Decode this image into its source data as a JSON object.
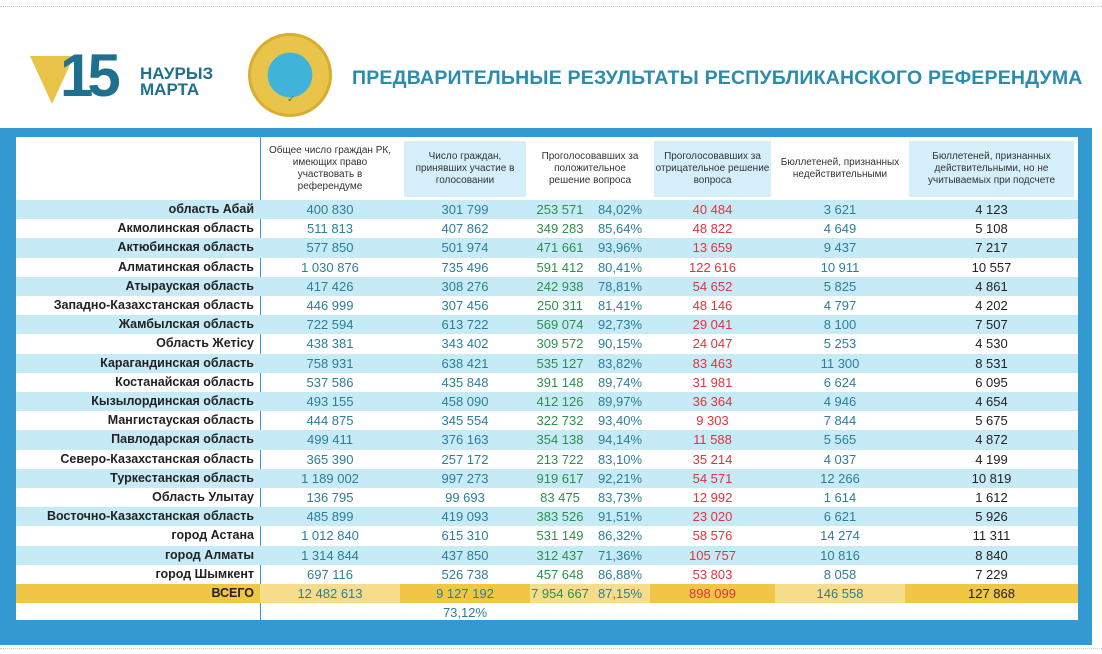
{
  "header": {
    "logo_number": "15",
    "logo_line1": "НАУРЫЗ",
    "logo_line2": "МАРТА",
    "title": "ПРЕДВАРИТЕЛЬНЫЕ РЕЗУЛЬТАТЫ РЕСПУБЛИКАНСКОГО РЕФЕРЕНДУМА"
  },
  "columns": [
    "Общее число граждан РК, имеющих право участвовать в референдуме",
    "Число граждан, принявших участие в голосовании",
    "Проголосовавших за положительное решение вопроса",
    "Проголосовавших за отрицательное решение вопроса",
    "Бюллетеней, признанных недействительными",
    "Бюллетеней, признанных действительными, но не учитываемых при подсчете"
  ],
  "rows": [
    [
      "область Абай",
      "400 830",
      "301 799",
      "253 571",
      "84,02%",
      "40 484",
      "3 621",
      "4 123"
    ],
    [
      "Акмолинская область",
      "511 813",
      "407 862",
      "349 283",
      "85,64%",
      "48 822",
      "4 649",
      "5 108"
    ],
    [
      "Актюбинская область",
      "577 850",
      "501 974",
      "471 661",
      "93,96%",
      "13 659",
      "9 437",
      "7 217"
    ],
    [
      "Алматинская область",
      "1 030 876",
      "735 496",
      "591 412",
      "80,41%",
      "122 616",
      "10 911",
      "10 557"
    ],
    [
      "Атырауская область",
      "417 426",
      "308 276",
      "242 938",
      "78,81%",
      "54 652",
      "5 825",
      "4 861"
    ],
    [
      "Западно-Казахстанская область",
      "446 999",
      "307 456",
      "250 311",
      "81,41%",
      "48 146",
      "4 797",
      "4 202"
    ],
    [
      "Жамбылская область",
      "722 594",
      "613 722",
      "569 074",
      "92,73%",
      "29 041",
      "8 100",
      "7 507"
    ],
    [
      "Область Жетісу",
      "438 381",
      "343 402",
      "309 572",
      "90,15%",
      "24 047",
      "5 253",
      "4 530"
    ],
    [
      "Карагандинская область",
      "758 931",
      "638 421",
      "535 127",
      "83,82%",
      "83 463",
      "11 300",
      "8 531"
    ],
    [
      "Костанайская область",
      "537 586",
      "435 848",
      "391 148",
      "89,74%",
      "31 981",
      "6 624",
      "6 095"
    ],
    [
      "Кызылординская область",
      "493 155",
      "458 090",
      "412 126",
      "89,97%",
      "36 364",
      "4 946",
      "4 654"
    ],
    [
      "Мангистауская область",
      "444 875",
      "345 554",
      "322 732",
      "93,40%",
      "9 303",
      "7 844",
      "5 675"
    ],
    [
      "Павлодарская область",
      "499 411",
      "376 163",
      "354 138",
      "94,14%",
      "11 588",
      "5 565",
      "4 872"
    ],
    [
      "Северо-Казахстанская область",
      "365 390",
      "257 172",
      "213 722",
      "83,10%",
      "35 214",
      "4 037",
      "4 199"
    ],
    [
      "Туркестанская область",
      "1 189 002",
      "997 273",
      "919 617",
      "92,21%",
      "54 571",
      "12 266",
      "10 819"
    ],
    [
      "Область Улытау",
      "136 795",
      "99 693",
      "83 475",
      "83,73%",
      "12 992",
      "1 614",
      "1 612"
    ],
    [
      "Восточно-Казахстанская область",
      "485 899",
      "419 093",
      "383 526",
      "91,51%",
      "23 020",
      "6 621",
      "5 926"
    ],
    [
      "город Астана",
      "1 012 840",
      "615 310",
      "531 149",
      "86,32%",
      "58 576",
      "14 274",
      "11 311"
    ],
    [
      "город Алматы",
      "1 314 844",
      "437 850",
      "312 437",
      "71,36%",
      "105 757",
      "10 816",
      "8 840"
    ],
    [
      "город Шымкент",
      "697 116",
      "526 738",
      "457 648",
      "86,88%",
      "53 803",
      "8 058",
      "7 229"
    ]
  ],
  "total": [
    "ВСЕГО",
    "12 482 613",
    "9 127 192",
    "7 954 667",
    "87,15%",
    "898 099",
    "146 558",
    "127 868"
  ],
  "turnout": "73,12%"
}
